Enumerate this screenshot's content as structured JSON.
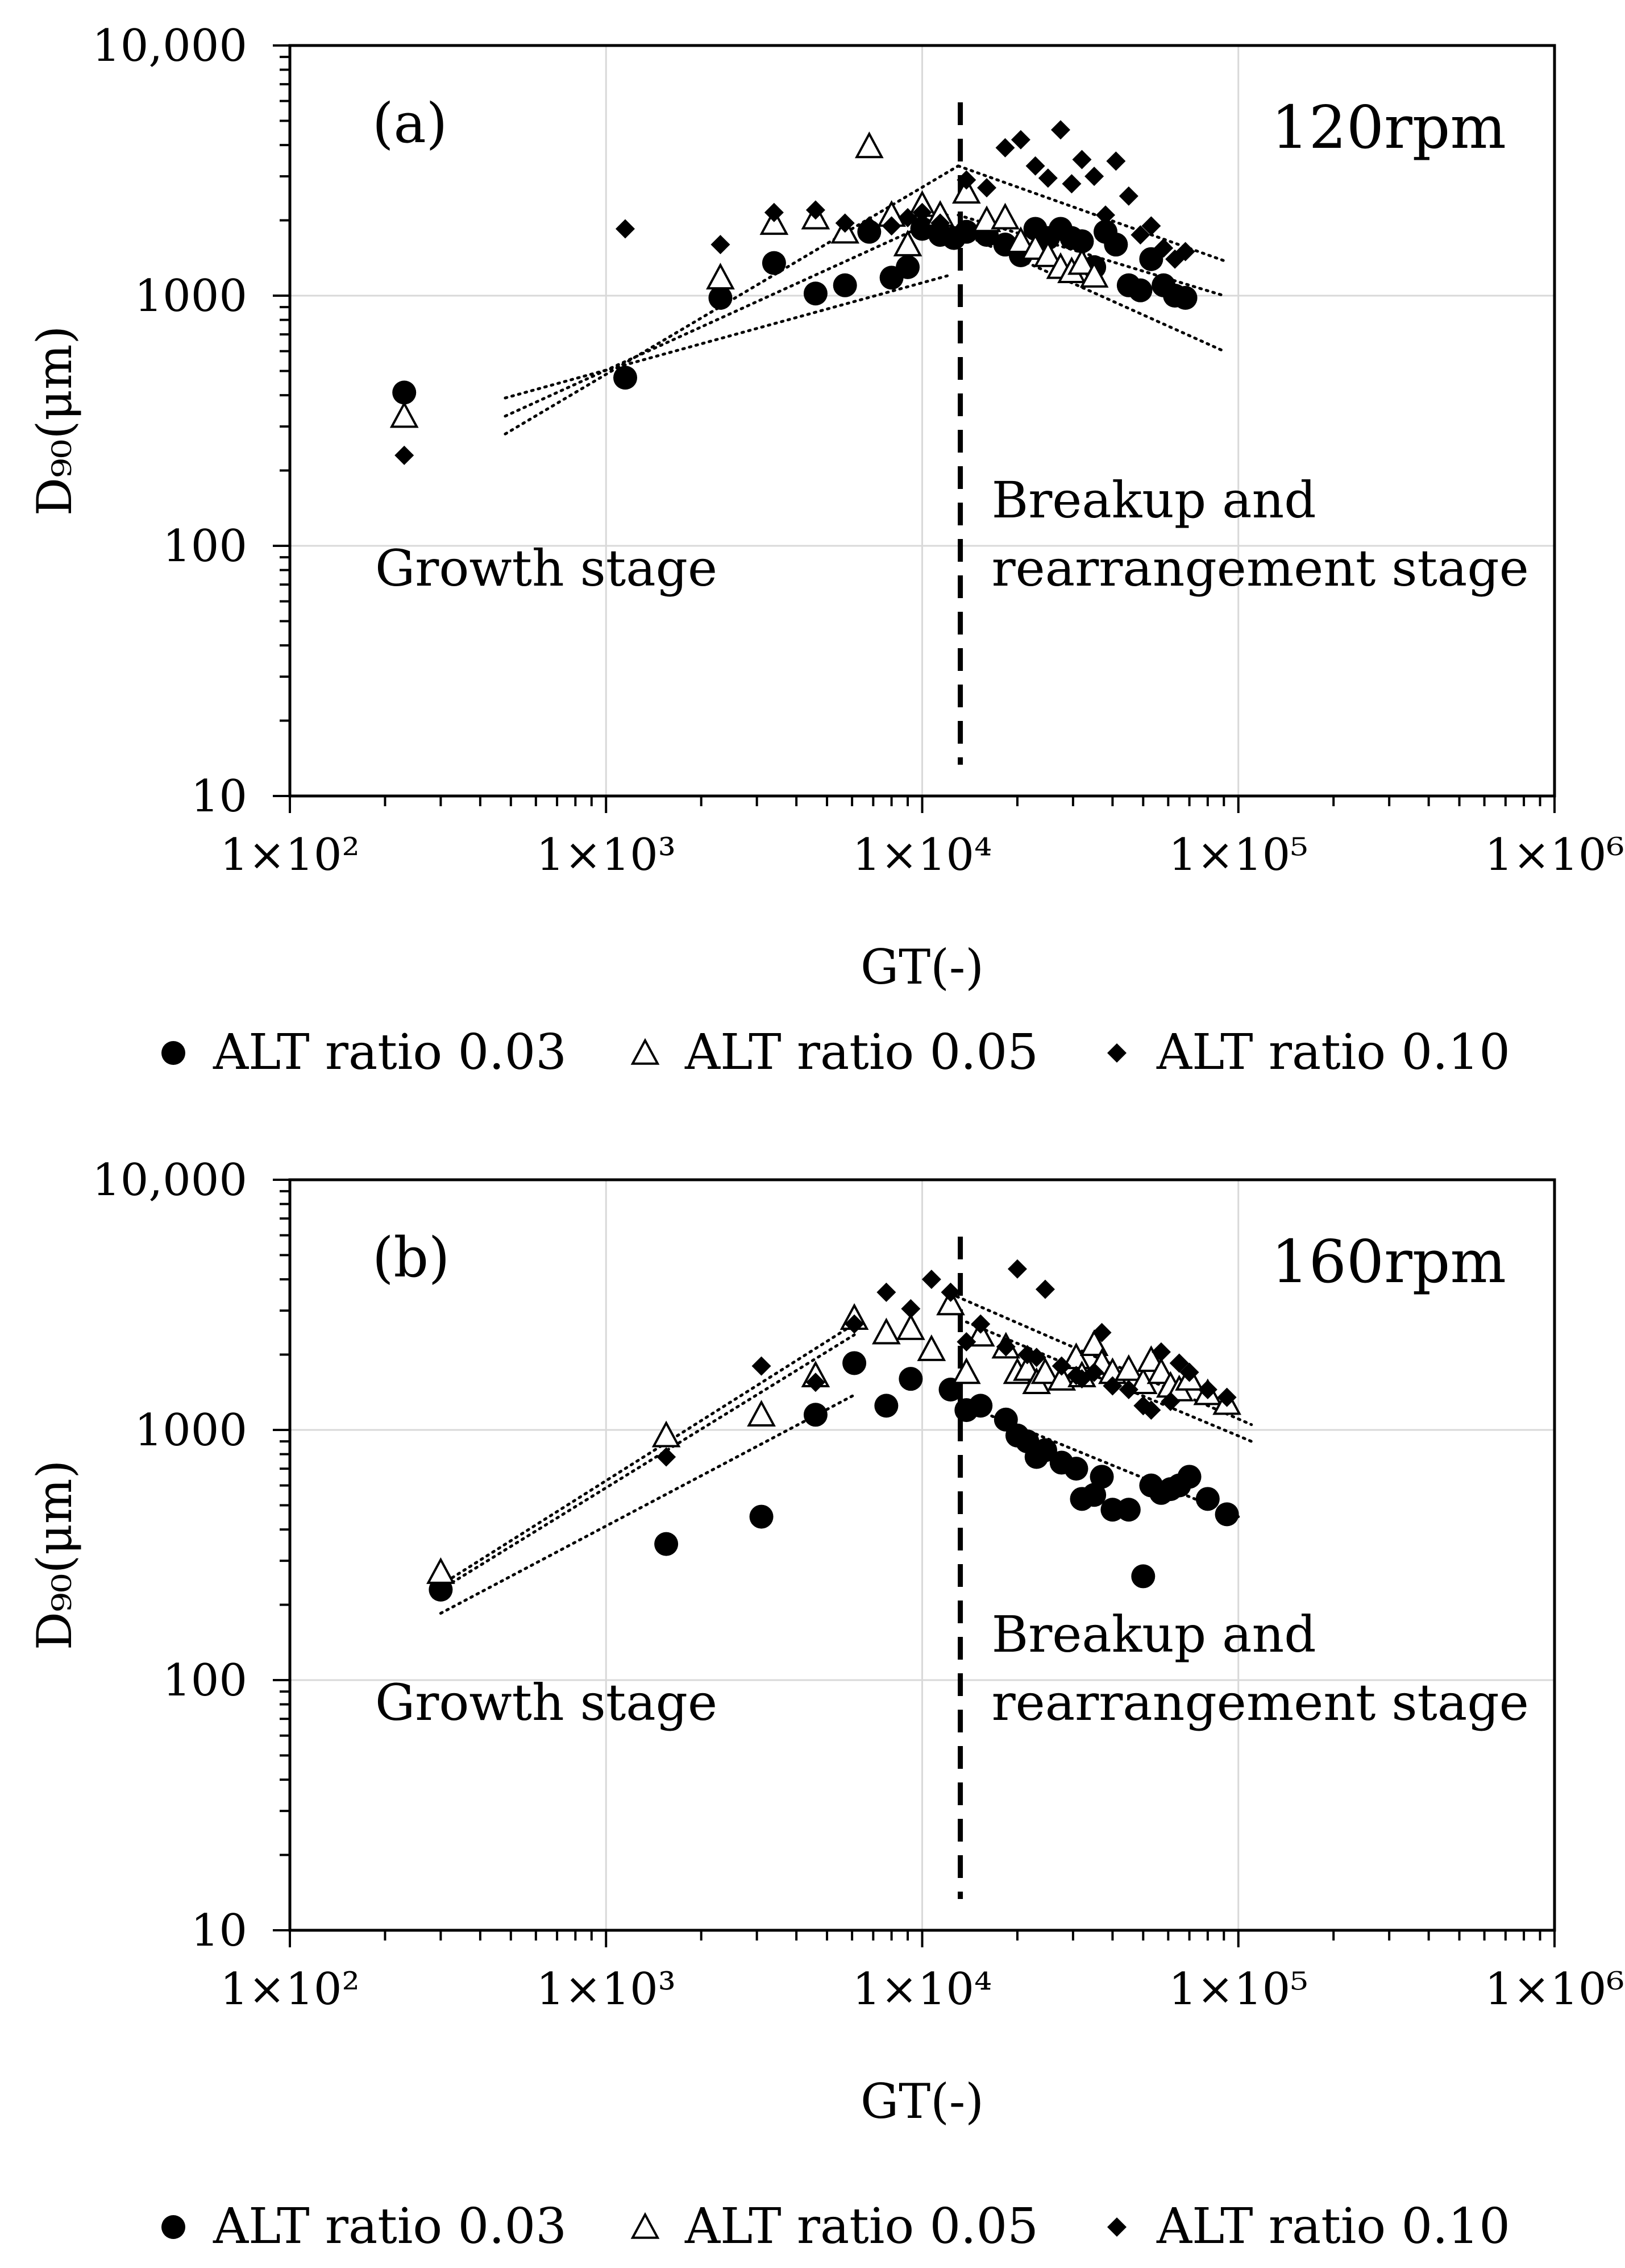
{
  "chart_data": [
    {
      "type": "scatter",
      "panel_label": "(a)",
      "speed_label": "120rpm",
      "xlabel": "GT(-)",
      "ylabel": "D₉₀(μm)",
      "x_scale": "log",
      "y_scale": "log",
      "xlim": [
        100,
        1000000
      ],
      "ylim": [
        10,
        10000
      ],
      "x_ticks": [
        {
          "value": 100,
          "label": "1×10²"
        },
        {
          "value": 1000,
          "label": "1×10³"
        },
        {
          "value": 10000,
          "label": "1×10⁴"
        },
        {
          "value": 100000,
          "label": "1×10⁵"
        },
        {
          "value": 1000000,
          "label": "1×10⁶"
        }
      ],
      "y_ticks": [
        {
          "value": 10,
          "label": "10"
        },
        {
          "value": 100,
          "label": "100"
        },
        {
          "value": 1000,
          "label": "1000"
        },
        {
          "value": 10000,
          "label": "10,000"
        }
      ],
      "grid": true,
      "stage_divider_x": 13200,
      "annotations": {
        "growth": "Growth stage",
        "breakup_line1": "Breakup and",
        "breakup_line2": "rearrangement stage"
      },
      "series": [
        {
          "name": "ALT ratio 0.03",
          "marker": "circle",
          "points": [
            [
              230,
              410
            ],
            [
              1150,
              470
            ],
            [
              2300,
              980
            ],
            [
              3400,
              1350
            ],
            [
              4600,
              1020
            ],
            [
              5700,
              1100
            ],
            [
              6800,
              1800
            ],
            [
              8000,
              1180
            ],
            [
              9000,
              1300
            ],
            [
              10000,
              1850
            ],
            [
              11400,
              1750
            ],
            [
              12600,
              1700
            ],
            [
              13800,
              1800
            ],
            [
              16000,
              1750
            ],
            [
              18300,
              1600
            ],
            [
              20500,
              1450
            ],
            [
              22800,
              1850
            ],
            [
              25000,
              1700
            ],
            [
              27400,
              1850
            ],
            [
              29700,
              1700
            ],
            [
              32000,
              1650
            ],
            [
              35000,
              1300
            ],
            [
              38000,
              1800
            ],
            [
              41000,
              1600
            ],
            [
              45000,
              1100
            ],
            [
              49000,
              1050
            ],
            [
              53000,
              1400
            ],
            [
              58000,
              1100
            ],
            [
              63000,
              1000
            ],
            [
              68000,
              980
            ]
          ]
        },
        {
          "name": "ALT ratio 0.05",
          "marker": "triangle",
          "points": [
            [
              230,
              330
            ],
            [
              2300,
              1180
            ],
            [
              3400,
              1950
            ],
            [
              4600,
              2050
            ],
            [
              5700,
              1800
            ],
            [
              6800,
              3950
            ],
            [
              8000,
              2100
            ],
            [
              9000,
              1600
            ],
            [
              10000,
              2300
            ],
            [
              11400,
              2100
            ],
            [
              13800,
              2600
            ],
            [
              16000,
              2000
            ],
            [
              18300,
              2050
            ],
            [
              20500,
              1650
            ],
            [
              22800,
              1550
            ],
            [
              25000,
              1450
            ],
            [
              27400,
              1300
            ],
            [
              29700,
              1250
            ],
            [
              32000,
              1350
            ],
            [
              35000,
              1200
            ]
          ]
        },
        {
          "name": "ALT ratio 0.10",
          "marker": "diamond",
          "points": [
            [
              230,
              230
            ],
            [
              1150,
              1850
            ],
            [
              2300,
              1600
            ],
            [
              3400,
              2150
            ],
            [
              4600,
              2200
            ],
            [
              5700,
              1950
            ],
            [
              6800,
              1900
            ],
            [
              8000,
              1900
            ],
            [
              9000,
              2050
            ],
            [
              10000,
              2150
            ],
            [
              11400,
              1950
            ],
            [
              13800,
              2900
            ],
            [
              16000,
              2700
            ],
            [
              18300,
              3900
            ],
            [
              20500,
              4200
            ],
            [
              22800,
              3300
            ],
            [
              25000,
              2950
            ],
            [
              27400,
              4600
            ],
            [
              29700,
              2800
            ],
            [
              32000,
              3500
            ],
            [
              35000,
              3000
            ],
            [
              38000,
              2100
            ],
            [
              41000,
              3450
            ],
            [
              45000,
              2500
            ],
            [
              49000,
              1750
            ],
            [
              53000,
              1900
            ],
            [
              58000,
              1550
            ],
            [
              63000,
              1400
            ],
            [
              68000,
              1500
            ]
          ]
        }
      ],
      "trend_lines": [
        {
          "x1": 480,
          "y1": 390,
          "x2": 12000,
          "y2": 1200
        },
        {
          "x1": 480,
          "y1": 330,
          "x2": 12000,
          "y2": 2100
        },
        {
          "x1": 480,
          "y1": 280,
          "x2": 13000,
          "y2": 3300
        },
        {
          "x1": 13000,
          "y1": 3300,
          "x2": 90000,
          "y2": 1380
        },
        {
          "x1": 13000,
          "y1": 2100,
          "x2": 90000,
          "y2": 1000
        },
        {
          "x1": 13000,
          "y1": 1800,
          "x2": 90000,
          "y2": 600
        }
      ],
      "legend": [
        "ALT ratio 0.03",
        "ALT ratio 0.05",
        "ALT ratio 0.10"
      ],
      "legend_position": "bottom"
    },
    {
      "type": "scatter",
      "panel_label": "(b)",
      "speed_label": "160rpm",
      "xlabel": "GT(-)",
      "ylabel": "D₉₀(μm)",
      "x_scale": "log",
      "y_scale": "log",
      "xlim": [
        100,
        1000000
      ],
      "ylim": [
        10,
        10000
      ],
      "x_ticks": [
        {
          "value": 100,
          "label": "1×10²"
        },
        {
          "value": 1000,
          "label": "1×10³"
        },
        {
          "value": 10000,
          "label": "1×10⁴"
        },
        {
          "value": 100000,
          "label": "1×10⁵"
        },
        {
          "value": 1000000,
          "label": "1×10⁶"
        }
      ],
      "y_ticks": [
        {
          "value": 10,
          "label": "10"
        },
        {
          "value": 100,
          "label": "100"
        },
        {
          "value": 1000,
          "label": "1000"
        },
        {
          "value": 10000,
          "label": "10,000"
        }
      ],
      "grid": true,
      "stage_divider_x": 13200,
      "annotations": {
        "growth": "Growth stage",
        "breakup_line1": "Breakup and",
        "breakup_line2": "rearrangement stage"
      },
      "series": [
        {
          "name": "ALT ratio 0.03",
          "marker": "circle",
          "points": [
            [
              300,
              230
            ],
            [
              1550,
              350
            ],
            [
              3100,
              450
            ],
            [
              4600,
              1150
            ],
            [
              6100,
              1850
            ],
            [
              7700,
              1250
            ],
            [
              9200,
              1600
            ],
            [
              12300,
              1450
            ],
            [
              13800,
              1200
            ],
            [
              15300,
              1250
            ],
            [
              18400,
              1100
            ],
            [
              20000,
              950
            ],
            [
              21500,
              900
            ],
            [
              23000,
              780
            ],
            [
              24500,
              830
            ],
            [
              27600,
              740
            ],
            [
              30700,
              700
            ],
            [
              32000,
              530
            ],
            [
              35000,
              550
            ],
            [
              37000,
              650
            ],
            [
              40000,
              480
            ],
            [
              45000,
              480
            ],
            [
              50000,
              260
            ],
            [
              53000,
              600
            ],
            [
              57000,
              560
            ],
            [
              61000,
              580
            ],
            [
              65000,
              600
            ],
            [
              70000,
              650
            ],
            [
              80000,
              530
            ],
            [
              92000,
              460
            ]
          ]
        },
        {
          "name": "ALT ratio 0.05",
          "marker": "triangle",
          "points": [
            [
              300,
              270
            ],
            [
              1550,
              950
            ],
            [
              3100,
              1150
            ],
            [
              4600,
              1650
            ],
            [
              6100,
              2800
            ],
            [
              7700,
              2450
            ],
            [
              9200,
              2550
            ],
            [
              10700,
              2100
            ],
            [
              12300,
              3200
            ],
            [
              13800,
              1700
            ],
            [
              15300,
              2400
            ],
            [
              18400,
              2150
            ],
            [
              20000,
              1700
            ],
            [
              21500,
              1750
            ],
            [
              23000,
              1550
            ],
            [
              24500,
              1700
            ],
            [
              27600,
              1600
            ],
            [
              30700,
              1950
            ],
            [
              32000,
              1650
            ],
            [
              35000,
              2200
            ],
            [
              37000,
              1850
            ],
            [
              40000,
              1700
            ],
            [
              45000,
              1750
            ],
            [
              50000,
              1550
            ],
            [
              53000,
              1900
            ],
            [
              57000,
              1700
            ],
            [
              61000,
              1500
            ],
            [
              65000,
              1450
            ],
            [
              70000,
              1600
            ],
            [
              80000,
              1400
            ],
            [
              92000,
              1280
            ]
          ]
        },
        {
          "name": "ALT ratio 0.10",
          "marker": "diamond",
          "points": [
            [
              1550,
              780
            ],
            [
              3100,
              1800
            ],
            [
              4600,
              1550
            ],
            [
              6100,
              2650
            ],
            [
              7700,
              3550
            ],
            [
              9200,
              3050
            ],
            [
              10700,
              4000
            ],
            [
              12300,
              3550
            ],
            [
              13800,
              2250
            ],
            [
              15300,
              2650
            ],
            [
              18400,
              2150
            ],
            [
              20000,
              4400
            ],
            [
              21500,
              2000
            ],
            [
              23000,
              1950
            ],
            [
              24500,
              3650
            ],
            [
              27600,
              1800
            ],
            [
              30700,
              1650
            ],
            [
              32000,
              1600
            ],
            [
              35000,
              1700
            ],
            [
              37000,
              2450
            ],
            [
              40000,
              1500
            ],
            [
              45000,
              1450
            ],
            [
              50000,
              1250
            ],
            [
              53000,
              1200
            ],
            [
              57000,
              2050
            ],
            [
              61000,
              1300
            ],
            [
              65000,
              1850
            ],
            [
              70000,
              1700
            ],
            [
              80000,
              1450
            ],
            [
              92000,
              1350
            ]
          ]
        }
      ],
      "trend_lines": [
        {
          "x1": 300,
          "y1": 240,
          "x2": 6100,
          "y2": 2650
        },
        {
          "x1": 300,
          "y1": 230,
          "x2": 6100,
          "y2": 2400
        },
        {
          "x1": 300,
          "y1": 185,
          "x2": 6100,
          "y2": 1380
        },
        {
          "x1": 12300,
          "y1": 3500,
          "x2": 110000,
          "y2": 1050
        },
        {
          "x1": 13800,
          "y1": 2700,
          "x2": 110000,
          "y2": 900
        },
        {
          "x1": 13800,
          "y1": 1250,
          "x2": 100000,
          "y2": 450
        }
      ],
      "legend": [
        "ALT ratio 0.03",
        "ALT ratio 0.05",
        "ALT ratio 0.10"
      ],
      "legend_position": "bottom"
    }
  ]
}
